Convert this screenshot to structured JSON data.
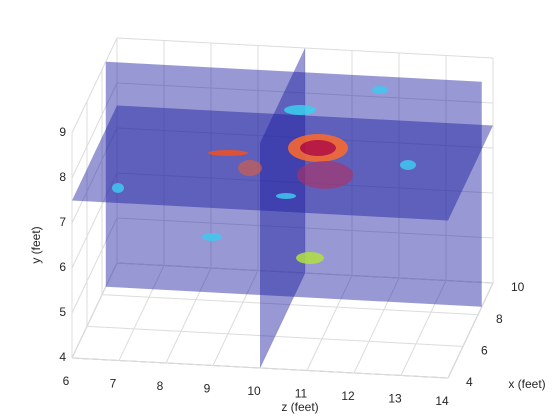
{
  "chart_data": {
    "type": "slice3d",
    "xlabel": "x (feet)",
    "ylabel": "y (feet)",
    "zlabel": "z (feet)",
    "xlim": [
      4,
      10
    ],
    "ylim": [
      4,
      9
    ],
    "zlim": [
      6,
      14
    ],
    "xticks": [
      4,
      6,
      8,
      10
    ],
    "yticks": [
      4,
      5,
      6,
      7,
      8,
      9
    ],
    "zticks": [
      6,
      7,
      8,
      9,
      10,
      11,
      12,
      13,
      14
    ],
    "slices": {
      "x": 8.5,
      "y": 7.5,
      "z": 10
    },
    "slice_color": "#1a1aa0",
    "grid": true
  }
}
